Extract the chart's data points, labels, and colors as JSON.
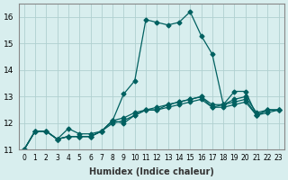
{
  "xlabel": "Humidex (Indice chaleur)",
  "ylabel": "",
  "x_values": [
    0,
    1,
    2,
    3,
    4,
    5,
    6,
    7,
    8,
    9,
    10,
    11,
    12,
    13,
    14,
    15,
    16,
    17,
    18,
    19,
    20,
    21,
    22,
    23
  ],
  "line1": [
    11.0,
    11.7,
    11.7,
    11.4,
    11.8,
    11.6,
    11.6,
    11.7,
    12.1,
    13.1,
    13.6,
    15.9,
    15.8,
    15.7,
    15.8,
    16.2,
    15.3,
    14.6,
    12.7,
    13.2,
    13.2,
    12.3,
    12.5,
    12.5
  ],
  "line2": [
    11.0,
    11.7,
    11.7,
    11.4,
    11.5,
    11.5,
    11.5,
    11.7,
    12.1,
    12.0,
    12.3,
    12.5,
    12.5,
    12.6,
    12.7,
    12.8,
    12.9,
    12.6,
    12.6,
    12.7,
    12.8,
    12.3,
    12.4,
    12.5
  ],
  "line3": [
    11.0,
    11.7,
    11.7,
    11.4,
    11.5,
    11.5,
    11.5,
    11.7,
    12.1,
    12.2,
    12.4,
    12.5,
    12.6,
    12.7,
    12.8,
    12.9,
    13.0,
    12.6,
    12.7,
    12.8,
    12.9,
    12.3,
    12.5,
    12.5
  ],
  "line4": [
    11.0,
    11.7,
    11.7,
    11.4,
    11.5,
    11.5,
    11.5,
    11.7,
    12.0,
    12.1,
    12.3,
    12.5,
    12.5,
    12.7,
    12.8,
    12.9,
    13.0,
    12.7,
    12.7,
    12.9,
    13.0,
    12.4,
    12.5,
    12.5
  ],
  "bg_color": "#d8eeee",
  "grid_color": "#b0d0d0",
  "line_color": "#006060",
  "ylim": [
    11,
    16.5
  ],
  "yticks": [
    11,
    12,
    13,
    14,
    15,
    16
  ],
  "xtick_labels": [
    "0",
    "1",
    "2",
    "3",
    "4",
    "5",
    "6",
    "7",
    "8",
    "9",
    "10",
    "11",
    "12",
    "13",
    "14",
    "15",
    "16",
    "17",
    "18",
    "19",
    "20",
    "21",
    "22",
    "23"
  ]
}
